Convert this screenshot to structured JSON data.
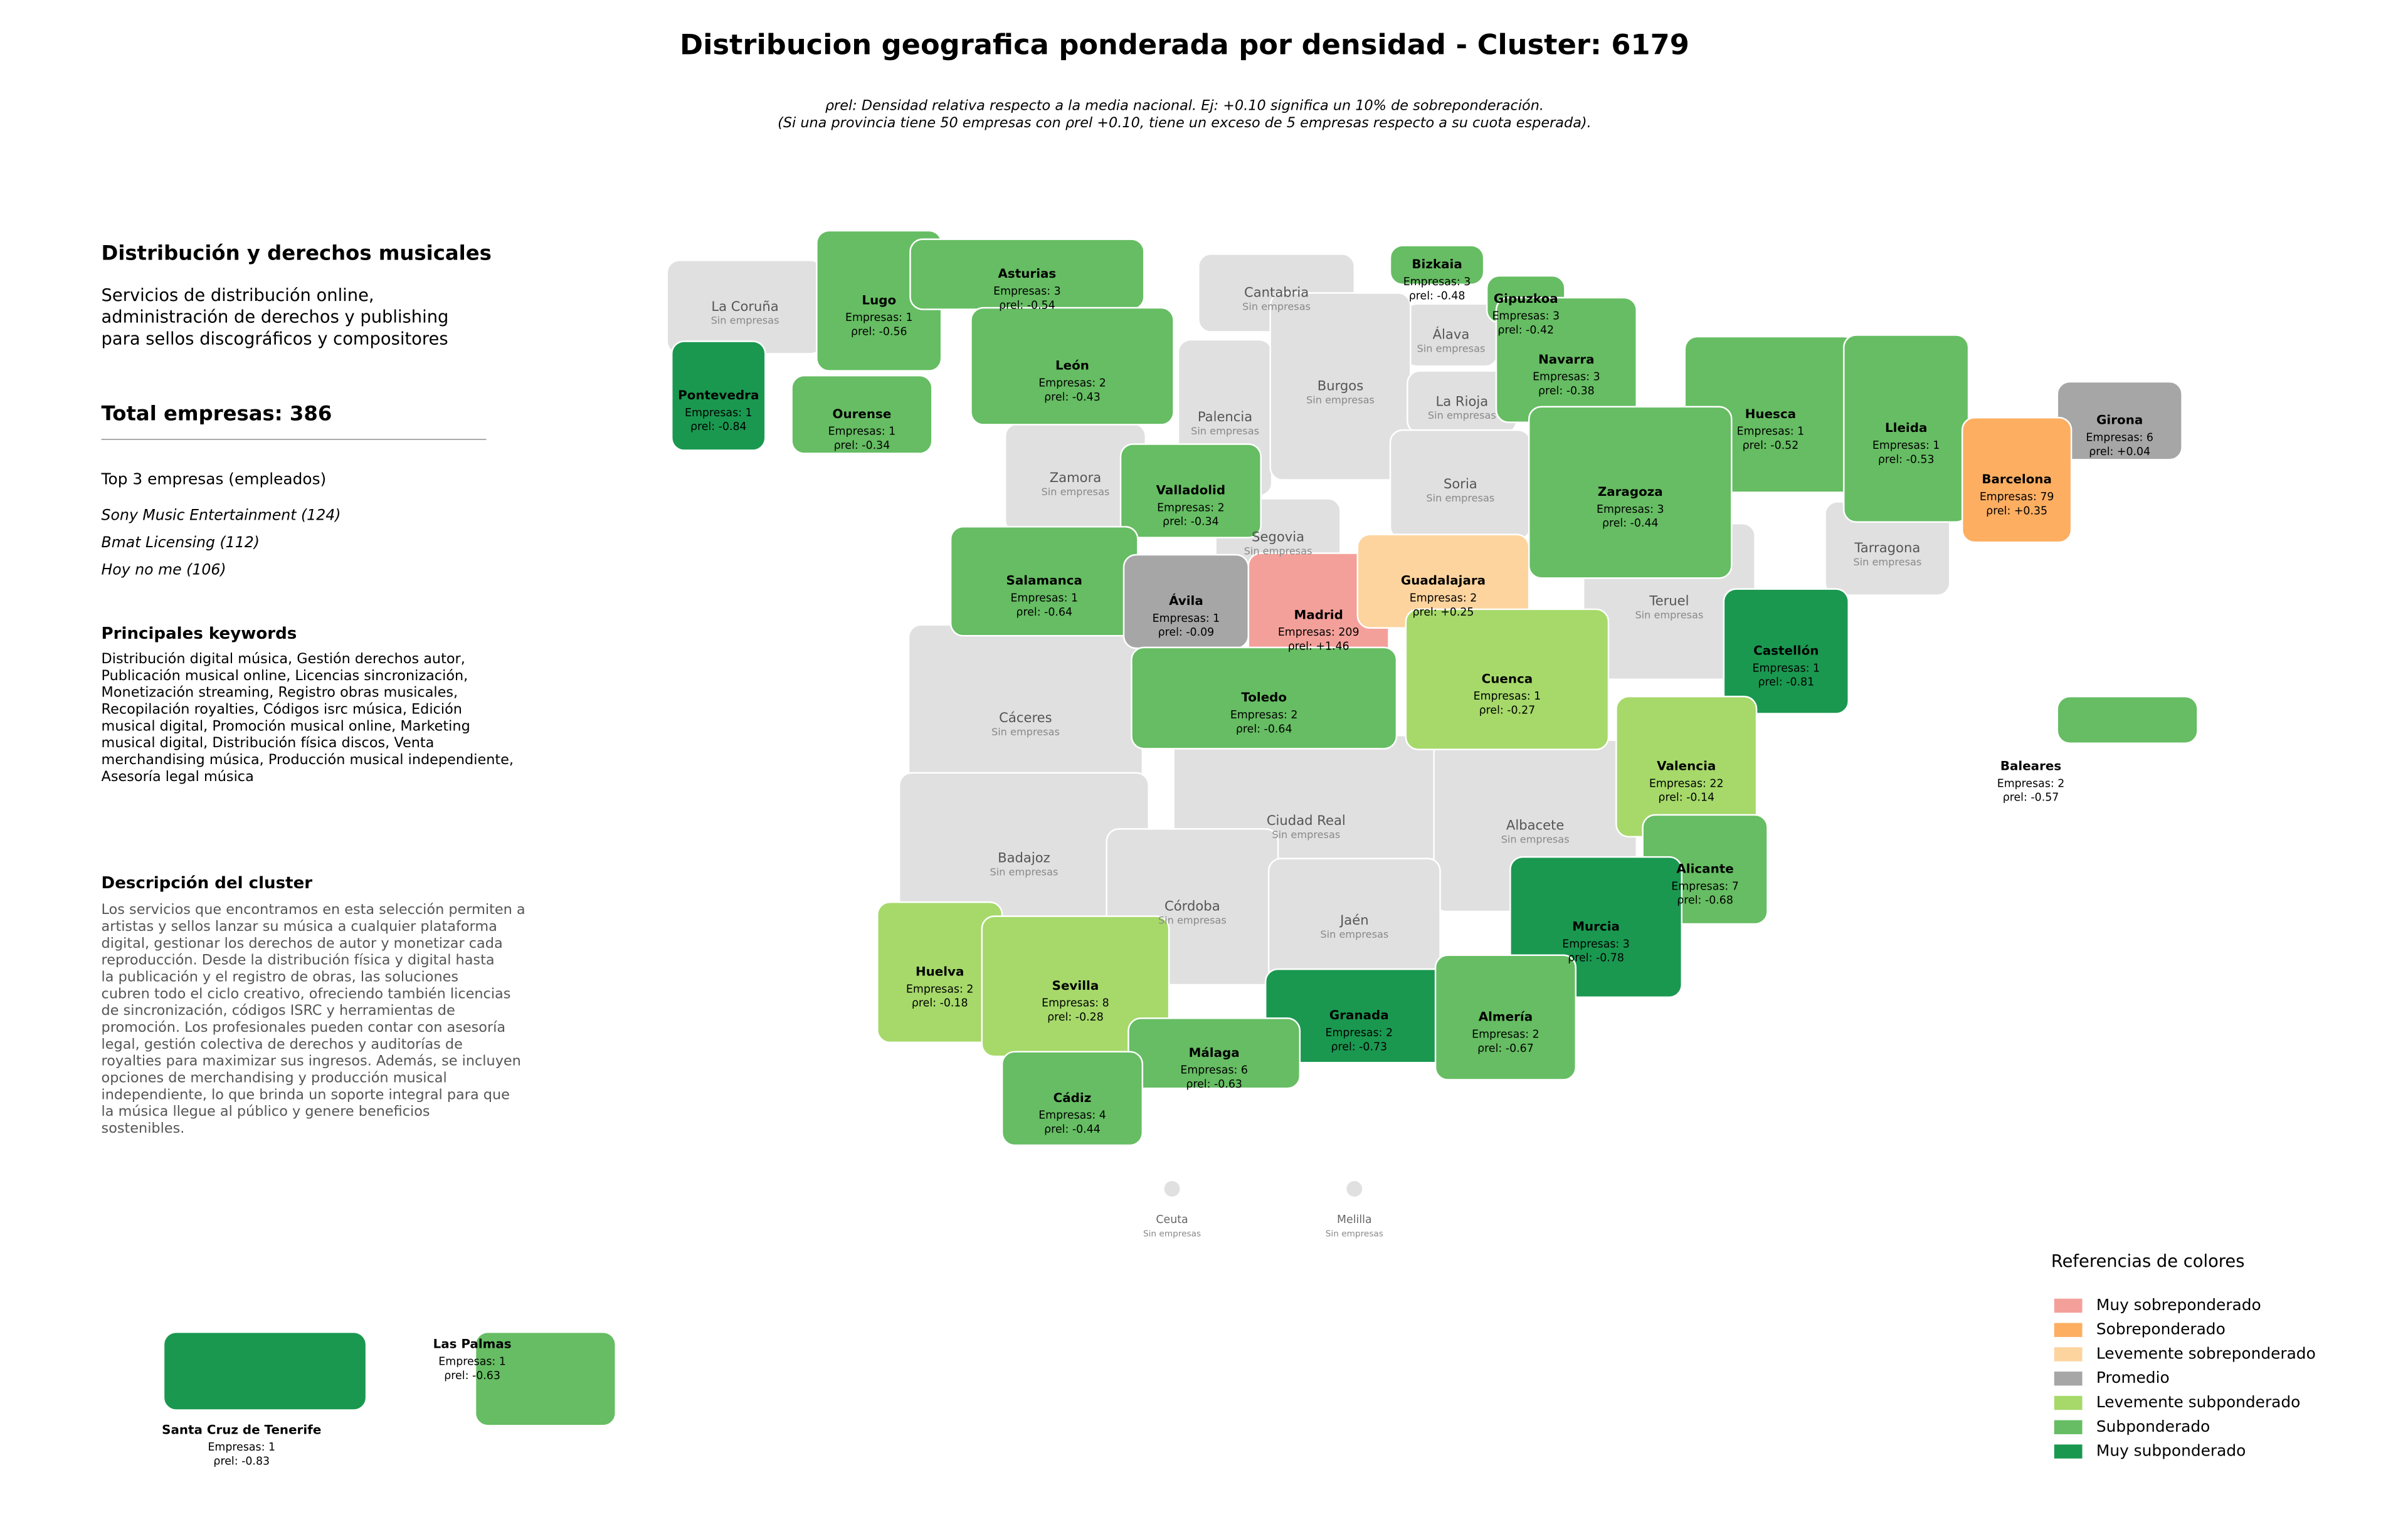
{
  "header": {
    "title": "Distribucion geografica ponderada por densidad - Cluster: 6179",
    "subtitle": [
      "ρrel: Densidad relativa respecto a la media nacional. Ej: +0.10 significa un 10% de sobreponderación.",
      "(Si una provincia tiene 50 empresas con ρrel +0.10, tiene un exceso de 5 empresas respecto a su cuota esperada)."
    ]
  },
  "panel": {
    "heading": "Distribución y derechos musicales",
    "description": [
      "Servicios de distribución online,",
      "administración de derechos y publishing",
      "para sellos discográficos y compositores"
    ],
    "total": "Total empresas: 386",
    "top_heading": "Top 3 empresas (empleados)",
    "top": [
      "Sony Music Entertainment (124)",
      "Bmat Licensing (112)",
      "Hoy no me (106)"
    ],
    "keywords_heading": "Principales keywords",
    "keywords": [
      "Distribución digital música, Gestión derechos autor,",
      "Publicación musical online, Licencias sincronización,",
      "Monetización streaming, Registro obras musicales,",
      "Recopilación royalties, Códigos isrc música, Edición",
      "musical digital, Promoción musical online, Marketing",
      "musical digital, Distribución física discos, Venta",
      "merchandising música, Producción musical independiente,",
      "Asesoría legal música"
    ],
    "cluster_heading": "Descripción del cluster",
    "cluster_text": [
      "Los servicios que encontramos en esta selección permiten a",
      "artistas y sellos lanzar su música a cualquier plataforma",
      "digital, gestionar los derechos de autor y monetizar cada",
      "reproducción. Desde la distribución física y digital hasta",
      "la publicación y el registro de obras, las soluciones",
      "cubren todo el ciclo creativo, ofreciendo también licencias",
      "de sincronización, códigos ISRC y herramientas de",
      "promoción. Los profesionales pueden contar con asesoría",
      "legal, gestión colectiva de derechos y auditorías de",
      "royalties para maximizar sus ingresos. Además, se incluyen",
      "opciones de merchandising y producción musical",
      "independiente, lo que brinda un soporte integral para que",
      "la música llegue al público y genere beneficios",
      "sostenibles."
    ]
  },
  "provinces": [
    {
      "name": "La Coruña",
      "status": "Sin empresas",
      "color": "#e0e0e0"
    },
    {
      "name": "Cantabria",
      "status": "Sin empresas",
      "color": "#e0e0e0"
    },
    {
      "name": "Álava",
      "status": "Sin empresas",
      "color": "#e0e0e0"
    },
    {
      "name": "Palencia",
      "status": "Sin empresas",
      "color": "#e0e0e0"
    },
    {
      "name": "Burgos",
      "status": "Sin empresas",
      "color": "#e0e0e0"
    },
    {
      "name": "La Rioja",
      "status": "Sin empresas",
      "color": "#e0e0e0"
    },
    {
      "name": "Zamora",
      "status": "Sin empresas",
      "color": "#e0e0e0"
    },
    {
      "name": "Soria",
      "status": "Sin empresas",
      "color": "#e0e0e0"
    },
    {
      "name": "Tarragona",
      "status": "Sin empresas",
      "color": "#e0e0e0"
    },
    {
      "name": "Segovia",
      "status": "Sin empresas",
      "color": "#e0e0e0"
    },
    {
      "name": "Teruel",
      "status": "Sin empresas",
      "color": "#e0e0e0"
    },
    {
      "name": "Cáceres",
      "status": "Sin empresas",
      "color": "#e0e0e0"
    },
    {
      "name": "Badajoz",
      "status": "Sin empresas",
      "color": "#e0e0e0"
    },
    {
      "name": "Ciudad Real",
      "status": "Sin empresas",
      "color": "#e0e0e0"
    },
    {
      "name": "Albacete",
      "status": "Sin empresas",
      "color": "#e0e0e0"
    },
    {
      "name": "Córdoba",
      "status": "Sin empresas",
      "color": "#e0e0e0"
    },
    {
      "name": "Jaén",
      "status": "Sin empresas",
      "color": "#e0e0e0"
    },
    {
      "name": "Ceuta",
      "status": "Sin empresas",
      "color": "#e0e0e0"
    },
    {
      "name": "Melilla",
      "status": "Sin empresas",
      "color": "#e0e0e0"
    },
    {
      "name": "Lugo",
      "empresas": "Empresas: 1",
      "rho": "ρrel: -0.56",
      "color": "#66bd63"
    },
    {
      "name": "Asturias",
      "empresas": "Empresas: 3",
      "rho": "ρrel: -0.54",
      "color": "#66bd63"
    },
    {
      "name": "Bizkaia",
      "empresas": "Empresas: 3",
      "rho": "ρrel: -0.48",
      "color": "#66bd63"
    },
    {
      "name": "Gipuzkoa",
      "empresas": "Empresas: 3",
      "rho": "ρrel: -0.42",
      "color": "#66bd63"
    },
    {
      "name": "Pontevedra",
      "empresas": "Empresas: 1",
      "rho": "ρrel: -0.84",
      "color": "#1a9850"
    },
    {
      "name": "Ourense",
      "empresas": "Empresas: 1",
      "rho": "ρrel: -0.34",
      "color": "#66bd63"
    },
    {
      "name": "León",
      "empresas": "Empresas: 2",
      "rho": "ρrel: -0.43",
      "color": "#66bd63"
    },
    {
      "name": "Navarra",
      "empresas": "Empresas: 3",
      "rho": "ρrel: -0.38",
      "color": "#66bd63"
    },
    {
      "name": "Huesca",
      "empresas": "Empresas: 1",
      "rho": "ρrel: -0.52",
      "color": "#66bd63"
    },
    {
      "name": "Lleida",
      "empresas": "Empresas: 1",
      "rho": "ρrel: -0.53",
      "color": "#66bd63"
    },
    {
      "name": "Girona",
      "empresas": "Empresas: 6",
      "rho": "ρrel: +0.04",
      "color": "#a6a6a6"
    },
    {
      "name": "Barcelona",
      "empresas": "Empresas: 79",
      "rho": "ρrel: +0.35",
      "color": "#fdae61"
    },
    {
      "name": "Valladolid",
      "empresas": "Empresas: 2",
      "rho": "ρrel: -0.34",
      "color": "#66bd63"
    },
    {
      "name": "Zaragoza",
      "empresas": "Empresas: 3",
      "rho": "ρrel: -0.44",
      "color": "#66bd63"
    },
    {
      "name": "Salamanca",
      "empresas": "Empresas: 1",
      "rho": "ρrel: -0.64",
      "color": "#66bd63"
    },
    {
      "name": "Ávila",
      "empresas": "Empresas: 1",
      "rho": "ρrel: -0.09",
      "color": "#a6a6a6"
    },
    {
      "name": "Madrid",
      "empresas": "Empresas: 209",
      "rho": "ρrel: +1.46",
      "color": "#f4a09a"
    },
    {
      "name": "Guadalajara",
      "empresas": "Empresas: 2",
      "rho": "ρrel: +0.25",
      "color": "#fdd49e"
    },
    {
      "name": "Castellón",
      "empresas": "Empresas: 1",
      "rho": "ρrel: -0.81",
      "color": "#1a9850"
    },
    {
      "name": "Toledo",
      "empresas": "Empresas: 2",
      "rho": "ρrel: -0.64",
      "color": "#66bd63"
    },
    {
      "name": "Cuenca",
      "empresas": "Empresas: 1",
      "rho": "ρrel: -0.27",
      "color": "#a6d96a"
    },
    {
      "name": "Valencia",
      "empresas": "Empresas: 22",
      "rho": "ρrel: -0.14",
      "color": "#a6d96a"
    },
    {
      "name": "Baleares",
      "empresas": "Empresas: 2",
      "rho": "ρrel: -0.57",
      "color": "#66bd63"
    },
    {
      "name": "Alicante",
      "empresas": "Empresas: 7",
      "rho": "ρrel: -0.68",
      "color": "#66bd63"
    },
    {
      "name": "Murcia",
      "empresas": "Empresas: 3",
      "rho": "ρrel: -0.78",
      "color": "#1a9850"
    },
    {
      "name": "Huelva",
      "empresas": "Empresas: 2",
      "rho": "ρrel: -0.18",
      "color": "#a6d96a"
    },
    {
      "name": "Sevilla",
      "empresas": "Empresas: 8",
      "rho": "ρrel: -0.28",
      "color": "#a6d96a"
    },
    {
      "name": "Granada",
      "empresas": "Empresas: 2",
      "rho": "ρrel: -0.73",
      "color": "#1a9850"
    },
    {
      "name": "Almería",
      "empresas": "Empresas: 2",
      "rho": "ρrel: -0.67",
      "color": "#66bd63"
    },
    {
      "name": "Málaga",
      "empresas": "Empresas: 6",
      "rho": "ρrel: -0.63",
      "color": "#66bd63"
    },
    {
      "name": "Cádiz",
      "empresas": "Empresas: 4",
      "rho": "ρrel: -0.44",
      "color": "#66bd63"
    },
    {
      "name": "Las Palmas",
      "empresas": "Empresas: 1",
      "rho": "ρrel: -0.63",
      "color": "#66bd63"
    },
    {
      "name": "Santa Cruz de Tenerife",
      "empresas": "Empresas: 1",
      "rho": "ρrel: -0.83",
      "color": "#1a9850"
    }
  ],
  "legend": {
    "title": "Referencias de colores",
    "items": [
      {
        "label": "Muy sobreponderado",
        "color": "#f4a09a"
      },
      {
        "label": "Sobreponderado",
        "color": "#fdae61"
      },
      {
        "label": "Levemente sobreponderado",
        "color": "#fdd49e"
      },
      {
        "label": "Promedio",
        "color": "#a6a6a6"
      },
      {
        "label": "Levemente subponderado",
        "color": "#a6d96a"
      },
      {
        "label": "Subponderado",
        "color": "#66bd63"
      },
      {
        "label": "Muy subponderado",
        "color": "#1a9850"
      }
    ]
  }
}
